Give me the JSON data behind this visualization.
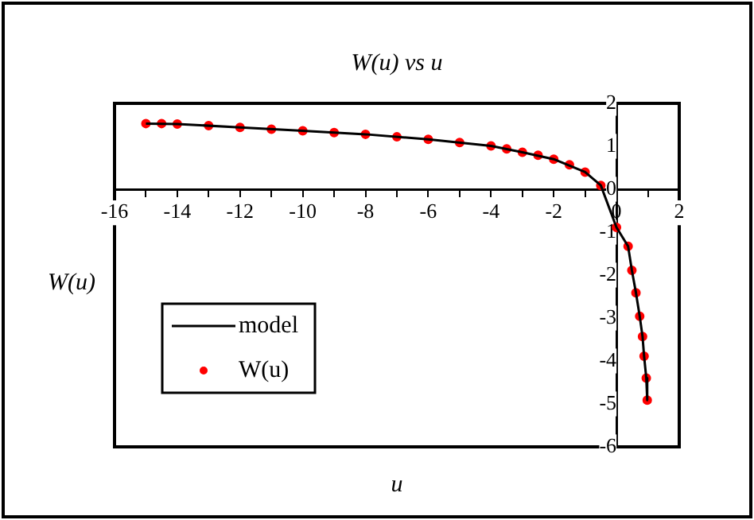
{
  "chart_data": {
    "type": "scatter",
    "title": "W(u) vs u",
    "xlabel": "u",
    "ylabel": "W(u)",
    "xlim": [
      -16,
      2
    ],
    "ylim": [
      -6,
      2
    ],
    "xticks": [
      -16,
      {
        "value": -15,
        "label": null
      },
      -14,
      {
        "value": -13,
        "label": null
      },
      -12,
      {
        "value": -11,
        "label": null
      },
      -10,
      {
        "value": -9,
        "label": null
      },
      -8,
      {
        "value": -7,
        "label": null
      },
      -6,
      {
        "value": -5,
        "label": null
      },
      -4,
      {
        "value": -3,
        "label": null
      },
      -2,
      {
        "value": -1,
        "label": null
      },
      0,
      {
        "value": 1,
        "label": null
      },
      2
    ],
    "yticks": [
      -6,
      -5,
      -4,
      -3,
      -2,
      -1,
      0,
      1,
      2
    ],
    "grid": false,
    "legend": "bottom left",
    "series": [
      {
        "name": "model",
        "type": "line",
        "color": "#000000",
        "marker": "none",
        "line_style": "solid",
        "x": [
          -15,
          -14,
          -12,
          -10,
          -8,
          -6,
          -4,
          -3,
          -2,
          -1,
          -0.5,
          0,
          0.37,
          0.49,
          0.62,
          0.74,
          0.83,
          0.88,
          0.95,
          0.98
        ],
        "values": [
          1.53,
          1.52,
          1.44,
          1.36,
          1.28,
          1.16,
          1.01,
          0.86,
          0.7,
          0.4,
          0.09,
          -0.89,
          -1.33,
          -1.89,
          -2.41,
          -2.96,
          -3.43,
          -3.89,
          -4.4,
          -4.91
        ]
      },
      {
        "name": "W(u)",
        "type": "scatter",
        "color": "#ff0000",
        "marker": "circle",
        "x": [
          -15,
          -14.5,
          -14,
          -13,
          -12,
          -11,
          -10,
          -9,
          -8,
          -7,
          -6,
          -5,
          -4,
          -3.5,
          -3,
          -2.5,
          -2,
          -1.5,
          -1,
          -0.5,
          0,
          0.37,
          0.49,
          0.62,
          0.74,
          0.83,
          0.88,
          0.95,
          0.98
        ],
        "values": [
          1.53,
          1.53,
          1.52,
          1.48,
          1.44,
          1.4,
          1.36,
          1.32,
          1.28,
          1.22,
          1.16,
          1.09,
          1.01,
          0.94,
          0.86,
          0.79,
          0.7,
          0.57,
          0.4,
          0.09,
          -0.89,
          -1.33,
          -1.89,
          -2.41,
          -2.96,
          -3.43,
          -3.89,
          -4.4,
          -4.91
        ]
      }
    ]
  }
}
